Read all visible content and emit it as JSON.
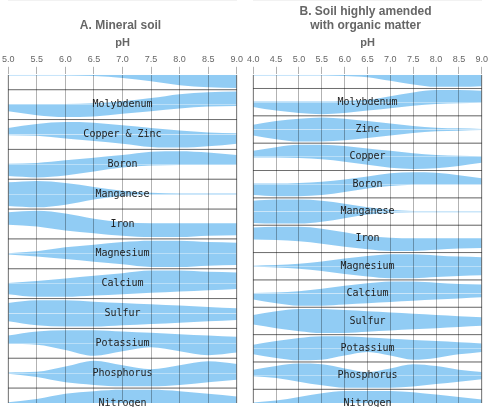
{
  "chart_data": [
    {
      "type": "area",
      "title": "A. Mineral soil",
      "x_label": "pH",
      "xlim": [
        5.0,
        9.0
      ],
      "xticks": [
        {
          "value": 5.0,
          "label": "5.0"
        },
        {
          "value": 5.5,
          "label": "5.5"
        },
        {
          "value": 6.0,
          "label": "6.0"
        },
        {
          "value": 6.5,
          "label": "6.5"
        },
        {
          "value": 7.0,
          "label": "7.0"
        },
        {
          "value": 7.5,
          "label": "7.5"
        },
        {
          "value": 8.0,
          "label": "8.0"
        },
        {
          "value": 8.5,
          "label": "8.5"
        },
        {
          "value": 9.0,
          "label": "9.0"
        }
      ],
      "grid": true,
      "tick_labels": "x",
      "color": "#36a2eb",
      "x": [
        5.0,
        5.5,
        6.0,
        6.5,
        7.0,
        7.5,
        8.0,
        8.5,
        9.0
      ],
      "series": [
        {
          "name": "Nitrogen",
          "values": [
            0.05,
            0.3,
            0.7,
            0.9,
            1.0,
            1.0,
            0.9,
            0.7,
            0.5
          ]
        },
        {
          "name": "Phosphorus",
          "values": [
            0.05,
            0.1,
            0.5,
            0.95,
            0.6,
            0.3,
            0.6,
            0.9,
            0.7
          ]
        },
        {
          "name": "Potassium",
          "values": [
            0.6,
            0.9,
            1.0,
            1.0,
            0.9,
            0.8,
            0.7,
            0.6,
            0.5
          ]
        },
        {
          "name": "Sulfur",
          "values": [
            0.8,
            1.0,
            1.0,
            0.9,
            0.8,
            0.7,
            0.6,
            0.5,
            0.4
          ]
        },
        {
          "name": "Calcium",
          "values": [
            0.05,
            0.2,
            0.4,
            0.6,
            0.8,
            1.0,
            1.0,
            0.9,
            0.85
          ]
        },
        {
          "name": "Magnesium",
          "values": [
            0.05,
            0.2,
            0.5,
            0.7,
            0.9,
            1.0,
            1.0,
            0.9,
            0.85
          ]
        },
        {
          "name": "Iron",
          "values": [
            0.9,
            1.0,
            0.8,
            0.4,
            0.15,
            0.05,
            0.05,
            0.05,
            0.05
          ]
        },
        {
          "name": "Manganese",
          "values": [
            0.9,
            1.0,
            0.85,
            0.55,
            0.25,
            0.1,
            0.05,
            0.05,
            0.05
          ]
        },
        {
          "name": "Boron",
          "values": [
            0.05,
            0.1,
            0.3,
            0.5,
            0.7,
            0.95,
            1.0,
            0.9,
            0.7
          ]
        },
        {
          "name": "Copper & Zinc",
          "values": [
            0.5,
            0.8,
            0.95,
            0.9,
            0.7,
            0.5,
            0.3,
            0.15,
            0.1
          ]
        },
        {
          "name": "Molybdenum",
          "values": [
            0.05,
            0.05,
            0.05,
            0.1,
            0.25,
            0.5,
            0.8,
            0.95,
            1.0
          ]
        }
      ]
    },
    {
      "type": "area",
      "title": [
        "B. Soil highly amended",
        "with organic matter"
      ],
      "x_label": "pH",
      "xlim": [
        4.0,
        9.0
      ],
      "xticks": [
        {
          "value": 4.0,
          "label": "4.0"
        },
        {
          "value": 4.5,
          "label": "4.5"
        },
        {
          "value": 5.0,
          "label": "5.0"
        },
        {
          "value": 5.5,
          "label": "5.5"
        },
        {
          "value": 6.0,
          "label": "6.0"
        },
        {
          "value": 6.5,
          "label": "6.5"
        },
        {
          "value": 7.0,
          "label": "7.0"
        },
        {
          "value": 7.5,
          "label": "7.5"
        },
        {
          "value": 8.0,
          "label": "8.0"
        },
        {
          "value": 8.5,
          "label": "8.5"
        },
        {
          "value": 9.0,
          "label": "9.0"
        }
      ],
      "grid": true,
      "tick_labels": "x",
      "color": "#36a2eb",
      "x": [
        4.0,
        4.5,
        5.0,
        5.5,
        6.0,
        6.5,
        7.0,
        7.5,
        8.0,
        8.5,
        9.0
      ],
      "series": [
        {
          "name": "Nitrogen",
          "values": [
            0.05,
            0.2,
            0.5,
            0.8,
            1.0,
            1.0,
            1.0,
            0.9,
            0.7,
            0.5,
            0.3
          ]
        },
        {
          "name": "Phosphorus",
          "values": [
            0.5,
            0.8,
            1.0,
            0.95,
            0.6,
            0.3,
            0.6,
            0.95,
            0.8,
            0.5,
            0.3
          ]
        },
        {
          "name": "Potassium",
          "values": [
            0.3,
            0.6,
            0.85,
            1.0,
            1.0,
            0.9,
            0.8,
            0.7,
            0.6,
            0.5,
            0.4
          ]
        },
        {
          "name": "Sulfur",
          "values": [
            0.5,
            0.8,
            1.0,
            1.0,
            0.9,
            0.8,
            0.7,
            0.6,
            0.5,
            0.4,
            0.3
          ]
        },
        {
          "name": "Calcium",
          "values": [
            0.05,
            0.1,
            0.2,
            0.4,
            0.65,
            0.85,
            1.0,
            1.0,
            0.9,
            0.8,
            0.75
          ]
        },
        {
          "name": "Magnesium",
          "values": [
            0.05,
            0.1,
            0.2,
            0.4,
            0.65,
            0.85,
            1.0,
            1.0,
            0.9,
            0.8,
            0.75
          ]
        },
        {
          "name": "Iron",
          "values": [
            0.95,
            1.0,
            1.0,
            0.85,
            0.55,
            0.25,
            0.1,
            0.05,
            0.05,
            0.05,
            0.05
          ]
        },
        {
          "name": "Manganese",
          "values": [
            0.9,
            1.0,
            1.0,
            0.9,
            0.65,
            0.35,
            0.15,
            0.05,
            0.05,
            0.05,
            0.05
          ]
        },
        {
          "name": "Boron",
          "values": [
            0.05,
            0.05,
            0.1,
            0.2,
            0.4,
            0.65,
            0.9,
            1.0,
            0.95,
            0.75,
            0.5
          ]
        },
        {
          "name": "Copper",
          "values": [
            0.5,
            0.8,
            1.0,
            1.0,
            0.9,
            0.7,
            0.5,
            0.3,
            0.15,
            0.1,
            0.05
          ]
        },
        {
          "name": "Zinc",
          "values": [
            0.4,
            0.7,
            0.9,
            1.0,
            0.9,
            0.7,
            0.5,
            0.3,
            0.15,
            0.1,
            0.05
          ]
        },
        {
          "name": "Molybdenum",
          "values": [
            0.05,
            0.05,
            0.05,
            0.05,
            0.1,
            0.2,
            0.5,
            0.8,
            1.0,
            1.0,
            0.95
          ]
        }
      ]
    }
  ]
}
